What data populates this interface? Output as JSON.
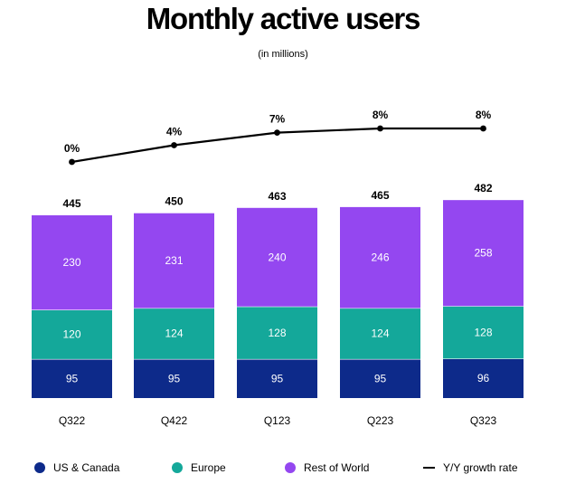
{
  "title": "Monthly active users",
  "subtitle": "(in millions)",
  "colors": {
    "us_canada": "#0d2a8a",
    "europe": "#14a89a",
    "rest_of_world": "#9447f0",
    "growth_line": "#000000"
  },
  "legend": [
    {
      "label": "US & Canada",
      "marker": "dot",
      "color": "#0d2a8a"
    },
    {
      "label": "Europe",
      "marker": "dot",
      "color": "#14a89a"
    },
    {
      "label": "Rest of World",
      "marker": "dot",
      "color": "#9447f0"
    },
    {
      "label": "Y/Y growth rate",
      "marker": "line",
      "color": "#000000"
    }
  ],
  "chart_data": {
    "type": "bar",
    "stacked": true,
    "title": "Monthly active users",
    "subtitle": "(in millions)",
    "categories": [
      "Q322",
      "Q422",
      "Q123",
      "Q223",
      "Q323"
    ],
    "series": [
      {
        "name": "US & Canada",
        "values": [
          95,
          95,
          95,
          95,
          96
        ],
        "color": "#0d2a8a"
      },
      {
        "name": "Europe",
        "values": [
          120,
          124,
          128,
          124,
          128
        ],
        "color": "#14a89a"
      },
      {
        "name": "Rest of World",
        "values": [
          230,
          231,
          240,
          246,
          258
        ],
        "color": "#9447f0"
      }
    ],
    "totals": [
      445,
      450,
      463,
      465,
      482
    ],
    "line_series": {
      "name": "Y/Y growth rate",
      "values": [
        0,
        4,
        7,
        8,
        8
      ],
      "labels": [
        "0%",
        "4%",
        "7%",
        "8%",
        "8%"
      ]
    },
    "grid": false,
    "legend_position": "bottom"
  }
}
